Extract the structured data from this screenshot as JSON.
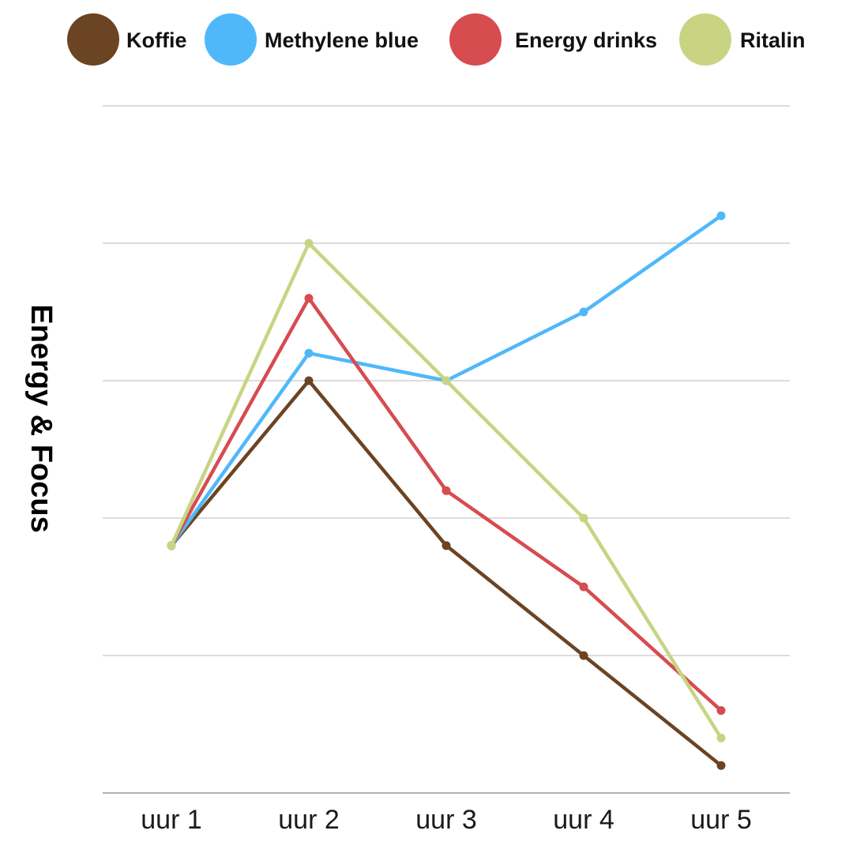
{
  "chart_data": {
    "type": "line",
    "title": "",
    "xlabel": "",
    "ylabel": "Energy & Focus",
    "categories": [
      "uur 1",
      "uur 2",
      "uur 3",
      "uur 4",
      "uur 5"
    ],
    "ylim": [
      0,
      5
    ],
    "grid": true,
    "y_tick_labels": false,
    "legend_position": "top",
    "series": [
      {
        "name": "Koffie",
        "color": "#6b4423",
        "values": [
          1.8,
          3.0,
          1.8,
          1.0,
          0.2
        ]
      },
      {
        "name": "Methylene blue",
        "color": "#4fb8fb",
        "values": [
          1.8,
          3.2,
          3.0,
          3.5,
          4.2
        ]
      },
      {
        "name": "Energy drinks",
        "color": "#d64c4f",
        "values": [
          1.8,
          3.6,
          2.2,
          1.5,
          0.6
        ]
      },
      {
        "name": "Ritalin",
        "color": "#c8d482",
        "values": [
          1.8,
          4.0,
          3.0,
          2.0,
          0.4
        ]
      }
    ]
  }
}
